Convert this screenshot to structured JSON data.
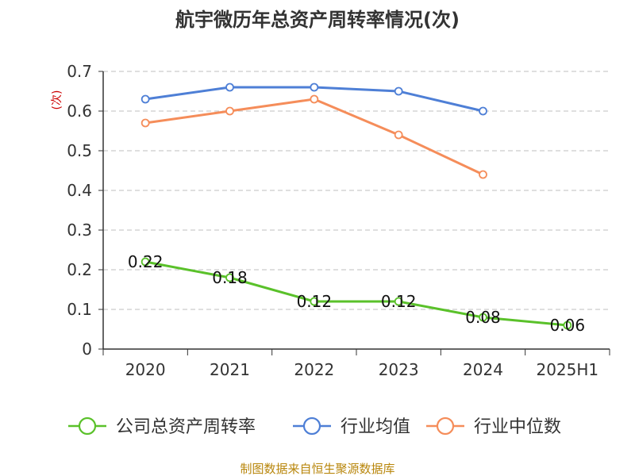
{
  "chart_data": {
    "type": "line",
    "title": "航宇微历年总资产周转率情况(次)",
    "ylabel": "(次)",
    "categories": [
      "2020",
      "2021",
      "2022",
      "2023",
      "2024",
      "2025H1"
    ],
    "ylim": [
      0,
      0.7
    ],
    "yticks": [
      "0",
      "0.1",
      "0.2",
      "0.3",
      "0.4",
      "0.5",
      "0.6",
      "0.7"
    ],
    "grid": true,
    "legend_position": "bottom",
    "series": [
      {
        "name": "公司总资产周转率",
        "color": "#5ac12a",
        "values": [
          0.22,
          0.18,
          0.12,
          0.12,
          0.08,
          0.06
        ],
        "labels": [
          "0.22",
          "0.18",
          "0.12",
          "0.12",
          "0.08",
          "0.06"
        ]
      },
      {
        "name": "行业均值",
        "color": "#4e7fd6",
        "values": [
          0.63,
          0.66,
          0.66,
          0.65,
          0.6,
          null
        ]
      },
      {
        "name": "行业中位数",
        "color": "#f58d5a",
        "values": [
          0.57,
          0.6,
          0.63,
          0.54,
          0.44,
          null
        ]
      }
    ]
  },
  "source": "制图数据来自恒生聚源数据库"
}
